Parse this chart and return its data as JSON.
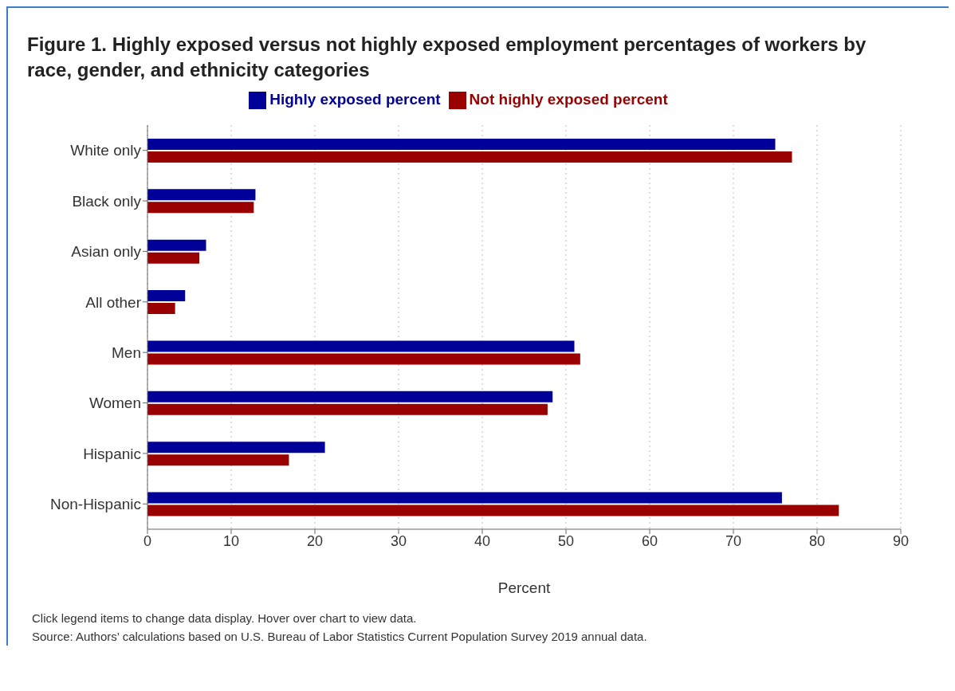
{
  "chart_data": {
    "type": "bar",
    "orientation": "horizontal",
    "title": "Figure 1. Highly exposed versus not highly exposed employment percentages of workers by race, gender, and ethnicity categories",
    "xlabel": "Percent",
    "categories": [
      "White only",
      "Black only",
      "Asian only",
      "All other",
      "Men",
      "Women",
      "Hispanic",
      "Non-Hispanic"
    ],
    "series": [
      {
        "name": "Highly exposed percent",
        "color": "#000099",
        "values": [
          75,
          12.9,
          7,
          4.5,
          51,
          48.4,
          21.2,
          75.8
        ]
      },
      {
        "name": "Not highly exposed percent",
        "color": "#990000",
        "values": [
          77,
          12.7,
          6.2,
          3.3,
          51.7,
          47.8,
          16.9,
          82.6
        ]
      }
    ],
    "xlim": [
      0,
      90
    ],
    "xticks": [
      0,
      10,
      20,
      30,
      40,
      50,
      60,
      70,
      80,
      90
    ],
    "grid": "x",
    "legend": "top",
    "annotations": [
      "Click legend items to change data display. Hover over chart to view data.",
      "Source: Authors’ calculations based on U.S. Bureau of Labor Statistics Current Population Survey 2019 annual data."
    ]
  }
}
